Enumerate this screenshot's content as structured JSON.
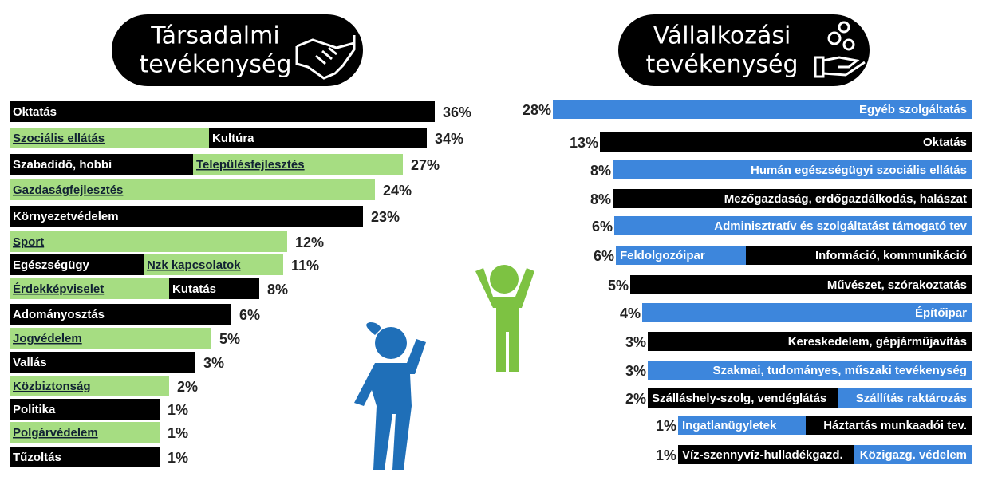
{
  "left": {
    "title_lines": [
      "Társadalmi",
      "tevékenység"
    ],
    "rows": [
      {
        "segments": [
          "Oktatás"
        ],
        "percent": "36%"
      },
      {
        "segments": [
          "Szociális ellátás",
          "Kultúra"
        ],
        "percent": "34%"
      },
      {
        "segments": [
          "Szabadidő, hobbi",
          "Településfejlesztés"
        ],
        "percent": "27%"
      },
      {
        "segments": [
          "Gazdaságfejlesztés"
        ],
        "percent": "24%"
      },
      {
        "segments": [
          "Környezetvédelem"
        ],
        "percent": "23%"
      },
      {
        "segments": [
          "Sport"
        ],
        "percent": "12%"
      },
      {
        "segments": [
          "Egészségügy",
          "Nzk kapcsolatok"
        ],
        "percent": "11%"
      },
      {
        "segments": [
          "Érdekképviselet",
          "Kutatás"
        ],
        "percent": "8%"
      },
      {
        "segments": [
          "Adományosztás"
        ],
        "percent": "6%"
      },
      {
        "segments": [
          "Jogvédelem"
        ],
        "percent": "5%"
      },
      {
        "segments": [
          "Vallás"
        ],
        "percent": "3%"
      },
      {
        "segments": [
          "Közbiztonság"
        ],
        "percent": "2%"
      },
      {
        "segments": [
          "Politika"
        ],
        "percent": "1%"
      },
      {
        "segments": [
          "Polgárvédelem"
        ],
        "percent": "1%"
      },
      {
        "segments": [
          "Tűzoltás"
        ],
        "percent": "1%"
      }
    ]
  },
  "right": {
    "title_lines": [
      "Vállalkozási",
      "tevékenység"
    ],
    "rows": [
      {
        "segments": [
          "Egyéb szolgáltatás"
        ],
        "percent": "28%"
      },
      {
        "segments": [
          "Oktatás"
        ],
        "percent": "13%"
      },
      {
        "segments": [
          "Humán egészségügyi szociális ellátás"
        ],
        "percent": "8%"
      },
      {
        "segments": [
          "Mezőgazdaság, erdőgazdálkodás, halászat"
        ],
        "percent": "8%"
      },
      {
        "segments": [
          "Adminisztratív és szolgáltatást támogató tev"
        ],
        "percent": "6%"
      },
      {
        "segments": [
          "Feldolgozóipar",
          "Információ, kommunikáció"
        ],
        "percent": "6%"
      },
      {
        "segments": [
          "Művészet, szórakoztatás"
        ],
        "percent": "5%"
      },
      {
        "segments": [
          "Építőipar"
        ],
        "percent": "4%"
      },
      {
        "segments": [
          "Kereskedelem, gépjárműjavítás"
        ],
        "percent": "3%"
      },
      {
        "segments": [
          "Szakmai, tudományes, műszaki tevékenység"
        ],
        "percent": "3%"
      },
      {
        "segments": [
          "Szálláshely-szolg, vendéglátás",
          "Szállítás raktározás"
        ],
        "percent": "2%"
      },
      {
        "segments": [
          "Ingatlanügyletek",
          "Háztartás munkaadói tev."
        ],
        "percent": "1%"
      },
      {
        "segments": [
          "Víz-szennyvíz-hulladékgazd.",
          "Közigazg. védelem"
        ],
        "percent": "1%"
      }
    ]
  }
}
